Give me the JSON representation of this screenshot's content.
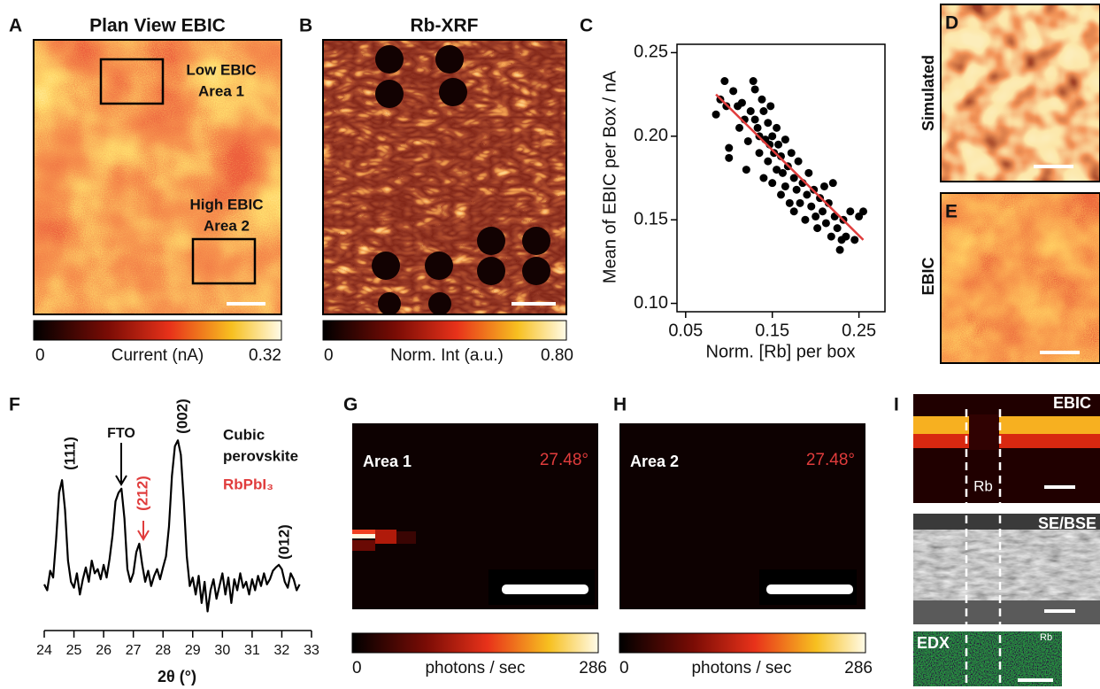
{
  "panels": {
    "A": {
      "label": "A",
      "title": "Plan View EBIC",
      "annotations": [
        "Low EBIC",
        "Area 1",
        "High EBIC",
        "Area 2"
      ],
      "colorbar": {
        "min": "0",
        "label": "Current (nA)",
        "max": "0.32"
      }
    },
    "B": {
      "label": "B",
      "title": "Rb-XRF",
      "colorbar": {
        "min": "0",
        "label": "Norm. Int (a.u.)",
        "max": "0.80"
      }
    },
    "D": {
      "label": "D",
      "side_label": "Simulated"
    },
    "E": {
      "label": "E",
      "side_label": "EBIC"
    },
    "G": {
      "label": "G",
      "area": "Area 1",
      "angle": "27.48°",
      "colorbar": {
        "min": "0",
        "label": "photons / sec",
        "max": "286"
      }
    },
    "H": {
      "label": "H",
      "area": "Area 2",
      "angle": "27.48°",
      "colorbar": {
        "min": "0",
        "label": "photons / sec",
        "max": "286"
      }
    },
    "I": {
      "label": "I",
      "images": [
        "EBIC",
        "SE/BSE",
        "EDX"
      ],
      "marker": "Rb",
      "edx_element": "Rb"
    }
  },
  "chart_data": [
    {
      "type": "scatter",
      "panel_label": "C",
      "xlabel": "Norm. [Rb] per box",
      "ylabel": "Mean of EBIC per Box / nA",
      "xlim": [
        0.04,
        0.28
      ],
      "ylim": [
        0.095,
        0.255
      ],
      "xticks": [
        0.05,
        0.15,
        0.25
      ],
      "yticks": [
        {
          "value": 0.1,
          "label": "0.10"
        },
        0.15,
        {
          "value": 0.2,
          "label": "0.20"
        },
        0.25
      ],
      "series": [
        {
          "color": "#000000",
          "x": [
            0.085,
            0.09,
            0.095,
            0.097,
            0.1,
            0.1,
            0.105,
            0.11,
            0.112,
            0.115,
            0.118,
            0.12,
            0.122,
            0.125,
            0.128,
            0.13,
            0.13,
            0.133,
            0.135,
            0.135,
            0.138,
            0.14,
            0.14,
            0.142,
            0.145,
            0.145,
            0.147,
            0.148,
            0.15,
            0.15,
            0.152,
            0.155,
            0.155,
            0.157,
            0.16,
            0.16,
            0.162,
            0.165,
            0.165,
            0.168,
            0.17,
            0.172,
            0.175,
            0.175,
            0.178,
            0.18,
            0.182,
            0.185,
            0.188,
            0.19,
            0.192,
            0.195,
            0.198,
            0.2,
            0.202,
            0.205,
            0.208,
            0.21,
            0.212,
            0.215,
            0.218,
            0.22,
            0.222,
            0.225,
            0.228,
            0.23,
            0.232,
            0.235,
            0.24,
            0.245,
            0.25,
            0.255
          ],
          "values": [
            0.213,
            0.222,
            0.233,
            0.218,
            0.193,
            0.187,
            0.227,
            0.218,
            0.205,
            0.22,
            0.21,
            0.18,
            0.197,
            0.215,
            0.233,
            0.228,
            0.21,
            0.205,
            0.2,
            0.19,
            0.222,
            0.215,
            0.175,
            0.198,
            0.208,
            0.185,
            0.195,
            0.218,
            0.2,
            0.172,
            0.19,
            0.205,
            0.18,
            0.195,
            0.188,
            0.165,
            0.178,
            0.198,
            0.17,
            0.182,
            0.16,
            0.19,
            0.175,
            0.155,
            0.168,
            0.185,
            0.16,
            0.172,
            0.15,
            0.165,
            0.178,
            0.158,
            0.168,
            0.152,
            0.145,
            0.163,
            0.155,
            0.17,
            0.148,
            0.16,
            0.14,
            0.172,
            0.152,
            0.145,
            0.132,
            0.138,
            0.15,
            0.14,
            0.155,
            0.138,
            0.152,
            0.155
          ]
        }
      ],
      "fit": {
        "color": "#e03c3c",
        "x": [
          0.085,
          0.255
        ],
        "y": [
          0.225,
          0.138
        ]
      }
    },
    {
      "type": "line",
      "panel_label": "F",
      "xlabel": "2θ (°)",
      "annotations": [
        "(111)",
        "FTO",
        "(212)",
        "(002)",
        "(012)",
        "Cubic",
        "perovskite",
        "RbPbI₃"
      ],
      "xlim": [
        24,
        33
      ],
      "ylim": [
        0,
        230
      ],
      "xticks": [
        24,
        25,
        26,
        27,
        28,
        29,
        30,
        31,
        32,
        33
      ],
      "x": [
        24.0,
        24.1,
        24.2,
        24.3,
        24.4,
        24.5,
        24.6,
        24.7,
        24.8,
        24.9,
        25.0,
        25.1,
        25.2,
        25.3,
        25.4,
        25.5,
        25.6,
        25.7,
        25.8,
        25.9,
        26.0,
        26.1,
        26.2,
        26.3,
        26.4,
        26.5,
        26.6,
        26.7,
        26.8,
        26.9,
        27.0,
        27.1,
        27.2,
        27.3,
        27.4,
        27.5,
        27.6,
        27.7,
        27.8,
        27.9,
        28.0,
        28.1,
        28.2,
        28.3,
        28.4,
        28.5,
        28.6,
        28.7,
        28.8,
        28.9,
        29.0,
        29.1,
        29.2,
        29.3,
        29.4,
        29.5,
        29.6,
        29.7,
        29.8,
        29.9,
        30.0,
        30.1,
        30.2,
        30.3,
        30.4,
        30.5,
        30.6,
        30.7,
        30.8,
        30.9,
        31.0,
        31.1,
        31.2,
        31.3,
        31.4,
        31.5,
        31.6,
        31.7,
        31.8,
        31.9,
        32.0,
        32.1,
        32.2,
        32.3,
        32.4,
        32.5,
        32.6
      ],
      "series": [
        {
          "color": "#000000",
          "values": [
            42,
            35,
            58,
            50,
            95,
            150,
            165,
            130,
            70,
            45,
            38,
            55,
            30,
            48,
            62,
            45,
            70,
            55,
            60,
            48,
            65,
            50,
            72,
            100,
            140,
            150,
            155,
            120,
            60,
            45,
            55,
            80,
            90,
            65,
            45,
            58,
            40,
            52,
            60,
            48,
            62,
            75,
            110,
            170,
            205,
            212,
            195,
            140,
            75,
            40,
            50,
            30,
            52,
            20,
            45,
            10,
            35,
            48,
            25,
            40,
            55,
            30,
            50,
            20,
            48,
            35,
            55,
            38,
            45,
            30,
            48,
            35,
            52,
            40,
            55,
            42,
            48,
            58,
            62,
            65,
            60,
            45,
            38,
            55,
            48,
            35,
            42
          ]
        }
      ]
    }
  ]
}
